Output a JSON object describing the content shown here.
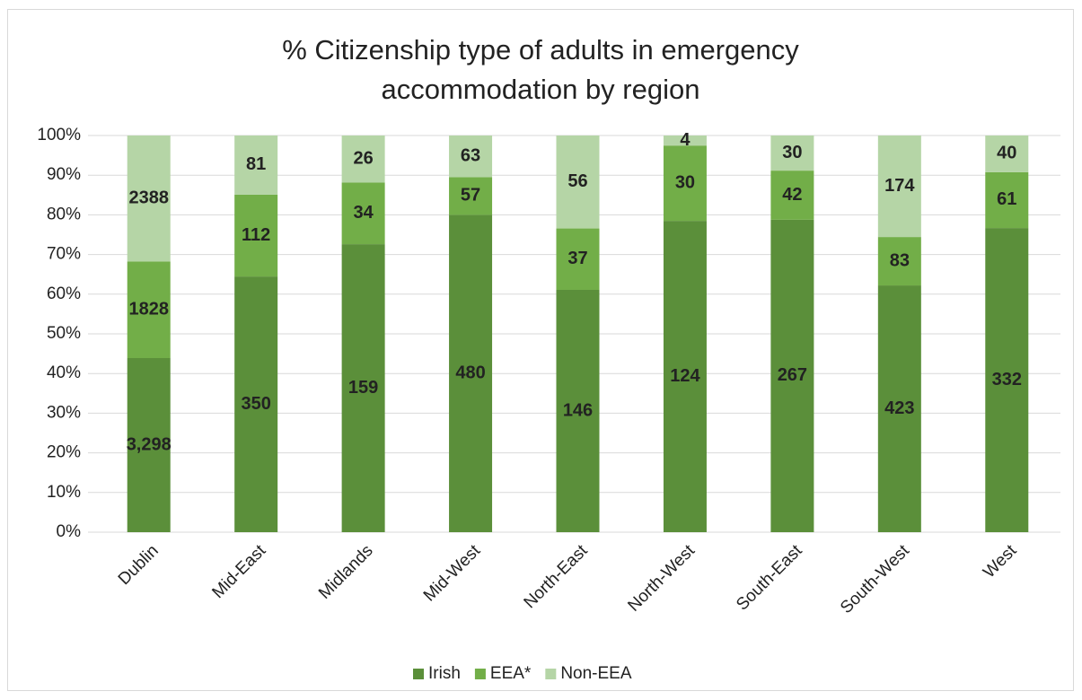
{
  "chart_data": {
    "type": "bar",
    "stacking": "percent",
    "title": "% Citizenship type of adults in emergency accommodation by region",
    "categories": [
      "Dublin",
      "Mid-East",
      "Midlands",
      "Mid-West",
      "North-East",
      "North-West",
      "South-East",
      "South-West",
      "West"
    ],
    "series": [
      {
        "name": "Irish",
        "color": "#5b8f3a",
        "values": [
          3298,
          350,
          159,
          480,
          146,
          124,
          267,
          423,
          332
        ],
        "value_labels": [
          "3,298",
          "350",
          "159",
          "480",
          "146",
          "124",
          "267",
          "423",
          "332"
        ]
      },
      {
        "name": "EEA*",
        "color": "#72ae48",
        "values": [
          1828,
          112,
          34,
          57,
          37,
          30,
          42,
          83,
          61
        ]
      },
      {
        "name": "Non-EEA",
        "color": "#b5d5a6",
        "values": [
          2388,
          81,
          26,
          63,
          56,
          4,
          30,
          174,
          40
        ]
      }
    ],
    "ylim": [
      0,
      100
    ],
    "yticks": [
      {
        "value": 0,
        "label": "0%"
      },
      {
        "value": 10,
        "label": "10%"
      },
      {
        "value": 20,
        "label": "20%"
      },
      {
        "value": 30,
        "label": "30%"
      },
      {
        "value": 40,
        "label": "40%"
      },
      {
        "value": 50,
        "label": "50%"
      },
      {
        "value": 60,
        "label": "60%"
      },
      {
        "value": 70,
        "label": "70%"
      },
      {
        "value": 80,
        "label": "80%"
      },
      {
        "value": 90,
        "label": "90%"
      },
      {
        "value": 100,
        "label": "100%"
      }
    ],
    "grid": true,
    "legend": "bottom"
  }
}
